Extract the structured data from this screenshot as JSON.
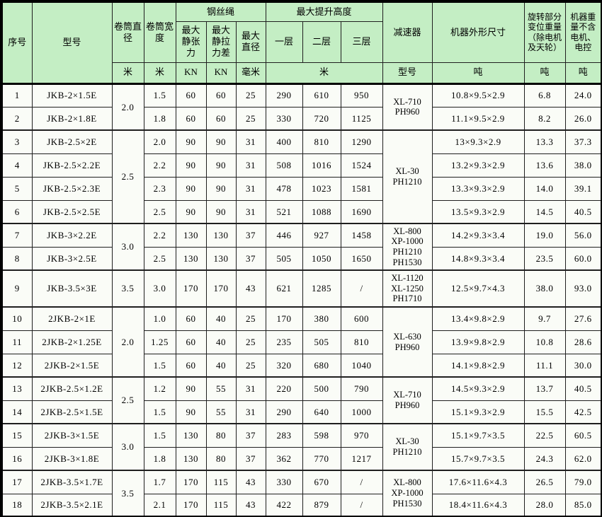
{
  "colors": {
    "header_bg": "#c4eec4",
    "cell_bg": "#fafcf7",
    "border": "#1f1f1f"
  },
  "table": {
    "header": {
      "serial": "序号",
      "model": "型号",
      "drum_diameter": "卷筒直径",
      "drum_width": "卷筒宽度",
      "wire_rope": "钢丝绳",
      "max_static_tension": "最大静张力",
      "max_static_tension_diff": "最大静拉力差",
      "max_diameter": "最大直径",
      "max_lift_height": "最大提升高度",
      "layer1": "一层",
      "layer2": "二层",
      "layer3": "三层",
      "reducer": "减速器",
      "machine_dimensions": "机器外形尺寸",
      "rotating_weight": "旋转部分变位重量（除电机及天轮）",
      "machine_weight": "机器重量不含电机、电控",
      "units": {
        "drum_diameter": "米",
        "drum_width": "米",
        "tension": "KN",
        "tension_diff": "KN",
        "rope_diameter": "毫米",
        "height": "米",
        "reducer": "型号",
        "dimensions": "吨",
        "rotating": "吨",
        "weight": "吨"
      }
    },
    "rows": [
      [
        {
          "t": "1"
        },
        {
          "t": "JKB-2×1.5E"
        },
        {
          "t": "2.0",
          "rs": 2
        },
        {
          "t": "1.5"
        },
        {
          "t": "60"
        },
        {
          "t": "60"
        },
        {
          "t": "25"
        },
        {
          "t": "290"
        },
        {
          "t": "610"
        },
        {
          "t": "950"
        },
        {
          "t": "XL-710\nPH960",
          "rs": 2
        },
        {
          "t": "10.8×9.5×2.9"
        },
        {
          "t": "6.8"
        },
        {
          "t": "24.0"
        }
      ],
      [
        {
          "t": "2"
        },
        {
          "t": "JKB-2×1.8E"
        },
        {
          "t": "1.8"
        },
        {
          "t": "60"
        },
        {
          "t": "60"
        },
        {
          "t": "25"
        },
        {
          "t": "330"
        },
        {
          "t": "720"
        },
        {
          "t": "1125"
        },
        {
          "t": "11.1×9.5×2.9"
        },
        {
          "t": "8.2"
        },
        {
          "t": "26.0"
        }
      ],
      [
        {
          "t": "3"
        },
        {
          "t": "JKB-2.5×2E"
        },
        {
          "t": "2.5",
          "rs": 4
        },
        {
          "t": "2.0"
        },
        {
          "t": "90"
        },
        {
          "t": "90"
        },
        {
          "t": "31"
        },
        {
          "t": "400"
        },
        {
          "t": "810"
        },
        {
          "t": "1290"
        },
        {
          "t": "XL-30\nPH1210",
          "rs": 4
        },
        {
          "t": "13×9.3×2.9"
        },
        {
          "t": "13.3"
        },
        {
          "t": "37.3"
        }
      ],
      [
        {
          "t": "4"
        },
        {
          "t": "JKB-2.5×2.2E"
        },
        {
          "t": "2.2"
        },
        {
          "t": "90"
        },
        {
          "t": "90"
        },
        {
          "t": "31"
        },
        {
          "t": "508"
        },
        {
          "t": "1016"
        },
        {
          "t": "1524"
        },
        {
          "t": "13.2×9.3×2.9"
        },
        {
          "t": "13.6"
        },
        {
          "t": "38.0"
        }
      ],
      [
        {
          "t": "5"
        },
        {
          "t": "JKB-2.5×2.3E"
        },
        {
          "t": "2.3"
        },
        {
          "t": "90"
        },
        {
          "t": "90"
        },
        {
          "t": "31"
        },
        {
          "t": "478"
        },
        {
          "t": "1023"
        },
        {
          "t": "1581"
        },
        {
          "t": "13.3×9.3×2.9"
        },
        {
          "t": "14.0"
        },
        {
          "t": "39.1"
        }
      ],
      [
        {
          "t": "6"
        },
        {
          "t": "JKB-2.5×2.5E"
        },
        {
          "t": "2.5"
        },
        {
          "t": "90"
        },
        {
          "t": "90"
        },
        {
          "t": "31"
        },
        {
          "t": "521"
        },
        {
          "t": "1088"
        },
        {
          "t": "1690"
        },
        {
          "t": "13.5×9.3×2.9"
        },
        {
          "t": "14.5"
        },
        {
          "t": "40.5"
        }
      ],
      [
        {
          "t": "7"
        },
        {
          "t": "JKB-3×2.2E"
        },
        {
          "t": "3.0",
          "rs": 2
        },
        {
          "t": "2.2"
        },
        {
          "t": "130"
        },
        {
          "t": "130"
        },
        {
          "t": "37"
        },
        {
          "t": "446"
        },
        {
          "t": "927"
        },
        {
          "t": "1458"
        },
        {
          "t": "XL-800\nXP-1000\nPH1210\nPH1530",
          "rs": 2
        },
        {
          "t": "14.2×9.3×3.4"
        },
        {
          "t": "19.0"
        },
        {
          "t": "56.0"
        }
      ],
      [
        {
          "t": "8"
        },
        {
          "t": "JKB-3×2.5E"
        },
        {
          "t": "2.5"
        },
        {
          "t": "130"
        },
        {
          "t": "130"
        },
        {
          "t": "37"
        },
        {
          "t": "505"
        },
        {
          "t": "1050"
        },
        {
          "t": "1650"
        },
        {
          "t": "14.8×9.3×3.4"
        },
        {
          "t": "23.5"
        },
        {
          "t": "60.0"
        }
      ],
      [
        {
          "t": "9"
        },
        {
          "t": "JKB-3.5×3E"
        },
        {
          "t": "3.5"
        },
        {
          "t": "3.0"
        },
        {
          "t": "170"
        },
        {
          "t": "170"
        },
        {
          "t": "43"
        },
        {
          "t": "621"
        },
        {
          "t": "1285"
        },
        {
          "t": "/"
        },
        {
          "t": "XL-1120\nXL-1250\nPH1710"
        },
        {
          "t": "12.5×9.7×4.3"
        },
        {
          "t": "38.0"
        },
        {
          "t": "93.0"
        }
      ],
      [
        {
          "t": "10"
        },
        {
          "t": "2JKB-2×1E"
        },
        {
          "t": "2.0",
          "rs": 3
        },
        {
          "t": "1.0"
        },
        {
          "t": "60"
        },
        {
          "t": "40"
        },
        {
          "t": "25"
        },
        {
          "t": "170"
        },
        {
          "t": "380"
        },
        {
          "t": "600"
        },
        {
          "t": "XL-630\nPH960",
          "rs": 3
        },
        {
          "t": "13.4×9.8×2.9"
        },
        {
          "t": "9.7"
        },
        {
          "t": "27.6"
        }
      ],
      [
        {
          "t": "11"
        },
        {
          "t": "2JKB-2×1.25E"
        },
        {
          "t": "1.25"
        },
        {
          "t": "60"
        },
        {
          "t": "40"
        },
        {
          "t": "25"
        },
        {
          "t": "235"
        },
        {
          "t": "505"
        },
        {
          "t": "810"
        },
        {
          "t": "13.9×9.8×2.9"
        },
        {
          "t": "10.8"
        },
        {
          "t": "28.6"
        }
      ],
      [
        {
          "t": "12"
        },
        {
          "t": "2JKB-2×1.5E"
        },
        {
          "t": "1.5"
        },
        {
          "t": "60"
        },
        {
          "t": "40"
        },
        {
          "t": "25"
        },
        {
          "t": "320"
        },
        {
          "t": "680"
        },
        {
          "t": "1040"
        },
        {
          "t": "14.1×9.8×2.9"
        },
        {
          "t": "11.1"
        },
        {
          "t": "30.0"
        }
      ],
      [
        {
          "t": "13"
        },
        {
          "t": "2JKB-2.5×1.2E"
        },
        {
          "t": "2.5",
          "rs": 2
        },
        {
          "t": "1.2"
        },
        {
          "t": "90"
        },
        {
          "t": "55"
        },
        {
          "t": "31"
        },
        {
          "t": "220"
        },
        {
          "t": "500"
        },
        {
          "t": "790"
        },
        {
          "t": "XL-710\nPH960",
          "rs": 2
        },
        {
          "t": "14.5×9.3×2.9"
        },
        {
          "t": "13.7"
        },
        {
          "t": "40.5"
        }
      ],
      [
        {
          "t": "14"
        },
        {
          "t": "2JKB-2.5×1.5E"
        },
        {
          "t": "1.5"
        },
        {
          "t": "90"
        },
        {
          "t": "55"
        },
        {
          "t": "31"
        },
        {
          "t": "290"
        },
        {
          "t": "640"
        },
        {
          "t": "1000"
        },
        {
          "t": "15.1×9.3×2.9"
        },
        {
          "t": "15.5"
        },
        {
          "t": "42.5"
        }
      ],
      [
        {
          "t": "15"
        },
        {
          "t": "2JKB-3×1.5E"
        },
        {
          "t": "3.0",
          "rs": 2
        },
        {
          "t": "1.5"
        },
        {
          "t": "130"
        },
        {
          "t": "80"
        },
        {
          "t": "37"
        },
        {
          "t": "283"
        },
        {
          "t": "598"
        },
        {
          "t": "970"
        },
        {
          "t": "XL-30\nPH1210",
          "rs": 2
        },
        {
          "t": "15.1×9.7×3.5"
        },
        {
          "t": "22.5"
        },
        {
          "t": "60.5"
        }
      ],
      [
        {
          "t": "16"
        },
        {
          "t": "2JKB-3×1.8E"
        },
        {
          "t": "1.8"
        },
        {
          "t": "130"
        },
        {
          "t": "80"
        },
        {
          "t": "37"
        },
        {
          "t": "362"
        },
        {
          "t": "770"
        },
        {
          "t": "1217"
        },
        {
          "t": "15.7×9.7×3.5"
        },
        {
          "t": "24.3"
        },
        {
          "t": "62.0"
        }
      ],
      [
        {
          "t": "17"
        },
        {
          "t": "2JKB-3.5×1.7E"
        },
        {
          "t": "3.5",
          "rs": 2
        },
        {
          "t": "1.7"
        },
        {
          "t": "170"
        },
        {
          "t": "115"
        },
        {
          "t": "43"
        },
        {
          "t": "330"
        },
        {
          "t": "670"
        },
        {
          "t": "/"
        },
        {
          "t": "XL-800\nXP-1000\nPH1530",
          "rs": 2
        },
        {
          "t": "17.6×11.6×4.3"
        },
        {
          "t": "26.5"
        },
        {
          "t": "79.0"
        }
      ],
      [
        {
          "t": "18"
        },
        {
          "t": "2JKB-3.5×2.1E"
        },
        {
          "t": "2.1"
        },
        {
          "t": "170"
        },
        {
          "t": "115"
        },
        {
          "t": "43"
        },
        {
          "t": "422"
        },
        {
          "t": "879"
        },
        {
          "t": "/"
        },
        {
          "t": "18.4×11.6×4.3"
        },
        {
          "t": "28.0"
        },
        {
          "t": "85.0"
        }
      ]
    ]
  }
}
